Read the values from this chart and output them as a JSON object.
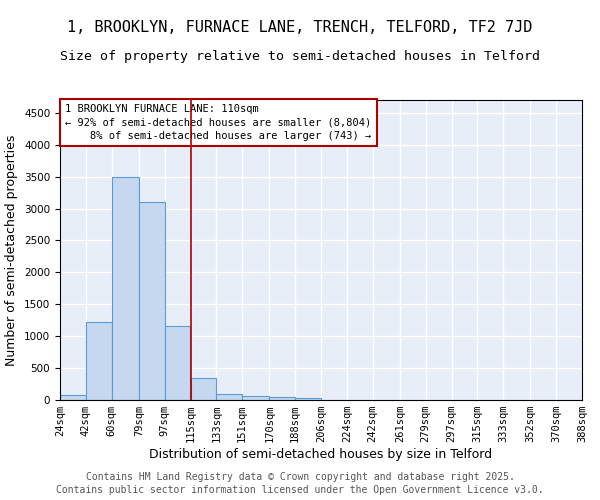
{
  "title": "1, BROOKLYN, FURNACE LANE, TRENCH, TELFORD, TF2 7JD",
  "subtitle": "Size of property relative to semi-detached houses in Telford",
  "xlabel": "Distribution of semi-detached houses by size in Telford",
  "ylabel": "Number of semi-detached properties",
  "bin_edges": [
    24,
    42,
    60,
    79,
    97,
    115,
    133,
    151,
    170,
    188,
    206,
    224,
    242,
    261,
    279,
    297,
    315,
    333,
    352,
    370,
    388
  ],
  "bin_labels": [
    "24sqm",
    "42sqm",
    "60sqm",
    "79sqm",
    "97sqm",
    "115sqm",
    "133sqm",
    "151sqm",
    "170sqm",
    "188sqm",
    "206sqm",
    "224sqm",
    "242sqm",
    "261sqm",
    "279sqm",
    "297sqm",
    "315sqm",
    "333sqm",
    "352sqm",
    "370sqm",
    "388sqm"
  ],
  "bar_heights": [
    75,
    1220,
    3500,
    3100,
    1160,
    340,
    100,
    55,
    40,
    30,
    0,
    0,
    0,
    0,
    0,
    0,
    0,
    0,
    0,
    0
  ],
  "bar_color": "#c5d8f0",
  "bar_edge_color": "#5b9bd5",
  "vline_color": "#aa0000",
  "annotation_text": "1 BROOKLYN FURNACE LANE: 110sqm\n← 92% of semi-detached houses are smaller (8,804)\n    8% of semi-detached houses are larger (743) →",
  "annotation_box_color": "#aa0000",
  "ylim": [
    0,
    4700
  ],
  "yticks": [
    0,
    500,
    1000,
    1500,
    2000,
    2500,
    3000,
    3500,
    4000,
    4500
  ],
  "background_color": "#e8eef8",
  "grid_color": "#ffffff",
  "footer_text": "Contains HM Land Registry data © Crown copyright and database right 2025.\nContains public sector information licensed under the Open Government Licence v3.0.",
  "title_fontsize": 11,
  "subtitle_fontsize": 9.5,
  "axis_label_fontsize": 9,
  "tick_fontsize": 7.5,
  "annotation_fontsize": 7.5,
  "footer_fontsize": 7
}
